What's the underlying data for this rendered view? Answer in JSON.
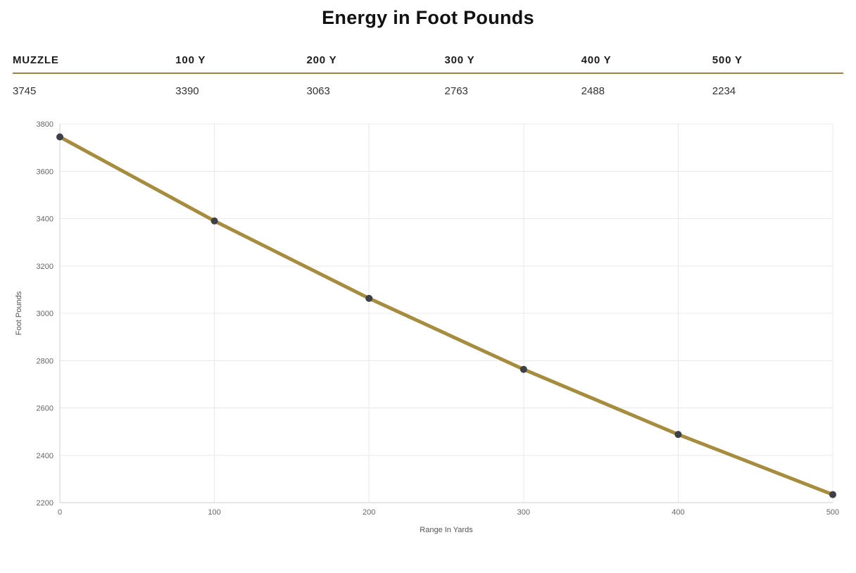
{
  "title": "Energy in Foot Pounds",
  "accent_color": "#9c8440",
  "ballistics_table": {
    "headers": [
      "MUZZLE",
      "100 Y",
      "200 Y",
      "300 Y",
      "400 Y",
      "500 Y"
    ],
    "values": [
      "3745",
      "3390",
      "3063",
      "2763",
      "2488",
      "2234"
    ]
  },
  "chart_data": {
    "type": "line",
    "x": [
      0,
      100,
      200,
      300,
      400,
      500
    ],
    "series": [
      {
        "name": "Energy in Foot Pounds",
        "values": [
          3745,
          3390,
          3063,
          2763,
          2488,
          2234
        ]
      }
    ],
    "title": "",
    "xlabel": "Range In Yards",
    "ylabel": "Foot Pounds",
    "xlim": [
      0,
      500
    ],
    "ylim": [
      2200,
      3800
    ],
    "xtick_step": 100,
    "ytick_step": 200,
    "grid": true,
    "legend_position": "none",
    "line_color": "#a58c3e",
    "point_color": "#3d4045",
    "grid_color": "#e8e8e8",
    "axis_color": "#cfcfcf",
    "tick_label_color": "#666666",
    "axis_title_color": "#555555"
  }
}
